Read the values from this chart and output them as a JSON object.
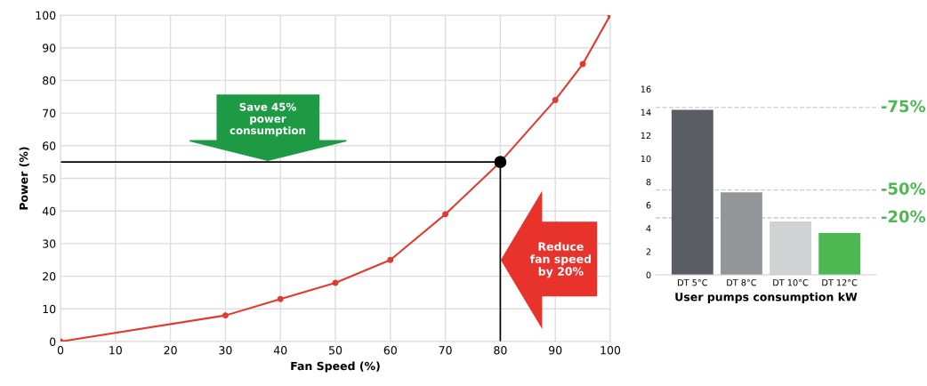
{
  "chart_data": [
    {
      "type": "line",
      "xlabel": "Fan Speed (%)",
      "ylabel": "Power (%)",
      "x": [
        0,
        30,
        40,
        50,
        60,
        70,
        80,
        90,
        95,
        100
      ],
      "series": [
        {
          "type": "line",
          "color": "#e03a2f",
          "values": [
            0,
            8,
            13,
            18,
            25,
            39,
            55,
            74,
            85,
            100
          ],
          "marker": "circle"
        },
        {
          "type": "scatter",
          "color": "#000000",
          "x": [
            80
          ],
          "values": [
            55
          ]
        }
      ],
      "xlim": [
        0,
        100
      ],
      "xticks": [
        0,
        10,
        20,
        30,
        40,
        50,
        60,
        70,
        80,
        90,
        100
      ],
      "ylim": [
        0,
        100
      ],
      "yticks": [
        0,
        10,
        20,
        30,
        40,
        50,
        60,
        70,
        80,
        90,
        100
      ],
      "grid": true,
      "ref_lines": [
        {
          "axis": "y",
          "value": 55,
          "color": "#000000"
        },
        {
          "axis": "x",
          "value": 80,
          "color": "#000000"
        }
      ],
      "annotations": [
        "Save 45%\npower\nconsumption",
        "Reduce\nfan speed\nby 20%"
      ]
    },
    {
      "type": "bar",
      "xlabel": "User pumps consumption kW",
      "categories": [
        "DT 5°C",
        "DT 8°C",
        "DT 10°C",
        "DT 12°C"
      ],
      "values": [
        14.2,
        7.1,
        4.6,
        3.6
      ],
      "colors": [
        "#5a5d63",
        "#939598",
        "#d1d2d4",
        "#4db852"
      ],
      "ylim": [
        0,
        16
      ],
      "yticks": [
        0,
        2,
        4,
        6,
        8,
        10,
        12,
        14,
        16
      ],
      "grid": false,
      "ref_lines": [
        {
          "axis": "y",
          "value": 14.4,
          "color": "#cccccc",
          "line_style": "dashed"
        },
        {
          "axis": "y",
          "value": 7.3,
          "color": "#cccccc",
          "line_style": "dashed"
        },
        {
          "axis": "y",
          "value": 4.9,
          "color": "#cccccc",
          "line_style": "dashed"
        }
      ],
      "annotations": [
        "-75%",
        "-50%",
        "-20%"
      ]
    }
  ]
}
